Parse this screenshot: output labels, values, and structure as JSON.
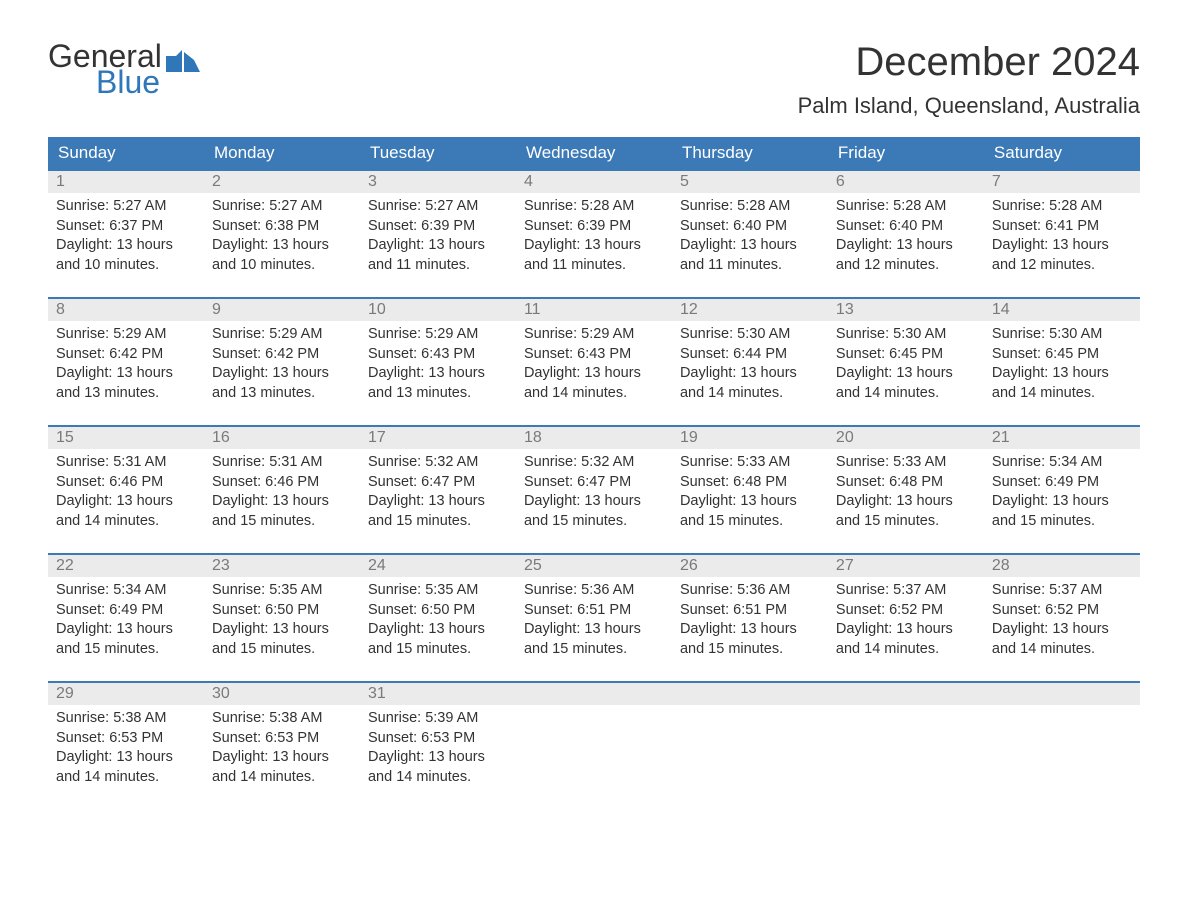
{
  "logo": {
    "word1": "General",
    "word2": "Blue",
    "accent_color": "#2f77b9"
  },
  "title": "December 2024",
  "location": "Palm Island, Queensland, Australia",
  "colors": {
    "header_bg": "#3b7ab7",
    "header_text": "#ffffff",
    "daynum_bg": "#ebebeb",
    "daynum_text": "#7a7a7a",
    "body_text": "#333333",
    "rule": "#3b7ab7",
    "background": "#ffffff"
  },
  "typography": {
    "title_fontsize": 40,
    "location_fontsize": 22,
    "dow_fontsize": 17,
    "daynum_fontsize": 16,
    "body_fontsize": 14.5
  },
  "days_of_week": [
    "Sunday",
    "Monday",
    "Tuesday",
    "Wednesday",
    "Thursday",
    "Friday",
    "Saturday"
  ],
  "weeks": [
    [
      {
        "n": "1",
        "sunrise": "5:27 AM",
        "sunset": "6:37 PM",
        "daylight": "13 hours and 10 minutes."
      },
      {
        "n": "2",
        "sunrise": "5:27 AM",
        "sunset": "6:38 PM",
        "daylight": "13 hours and 10 minutes."
      },
      {
        "n": "3",
        "sunrise": "5:27 AM",
        "sunset": "6:39 PM",
        "daylight": "13 hours and 11 minutes."
      },
      {
        "n": "4",
        "sunrise": "5:28 AM",
        "sunset": "6:39 PM",
        "daylight": "13 hours and 11 minutes."
      },
      {
        "n": "5",
        "sunrise": "5:28 AM",
        "sunset": "6:40 PM",
        "daylight": "13 hours and 11 minutes."
      },
      {
        "n": "6",
        "sunrise": "5:28 AM",
        "sunset": "6:40 PM",
        "daylight": "13 hours and 12 minutes."
      },
      {
        "n": "7",
        "sunrise": "5:28 AM",
        "sunset": "6:41 PM",
        "daylight": "13 hours and 12 minutes."
      }
    ],
    [
      {
        "n": "8",
        "sunrise": "5:29 AM",
        "sunset": "6:42 PM",
        "daylight": "13 hours and 13 minutes."
      },
      {
        "n": "9",
        "sunrise": "5:29 AM",
        "sunset": "6:42 PM",
        "daylight": "13 hours and 13 minutes."
      },
      {
        "n": "10",
        "sunrise": "5:29 AM",
        "sunset": "6:43 PM",
        "daylight": "13 hours and 13 minutes."
      },
      {
        "n": "11",
        "sunrise": "5:29 AM",
        "sunset": "6:43 PM",
        "daylight": "13 hours and 14 minutes."
      },
      {
        "n": "12",
        "sunrise": "5:30 AM",
        "sunset": "6:44 PM",
        "daylight": "13 hours and 14 minutes."
      },
      {
        "n": "13",
        "sunrise": "5:30 AM",
        "sunset": "6:45 PM",
        "daylight": "13 hours and 14 minutes."
      },
      {
        "n": "14",
        "sunrise": "5:30 AM",
        "sunset": "6:45 PM",
        "daylight": "13 hours and 14 minutes."
      }
    ],
    [
      {
        "n": "15",
        "sunrise": "5:31 AM",
        "sunset": "6:46 PM",
        "daylight": "13 hours and 14 minutes."
      },
      {
        "n": "16",
        "sunrise": "5:31 AM",
        "sunset": "6:46 PM",
        "daylight": "13 hours and 15 minutes."
      },
      {
        "n": "17",
        "sunrise": "5:32 AM",
        "sunset": "6:47 PM",
        "daylight": "13 hours and 15 minutes."
      },
      {
        "n": "18",
        "sunrise": "5:32 AM",
        "sunset": "6:47 PM",
        "daylight": "13 hours and 15 minutes."
      },
      {
        "n": "19",
        "sunrise": "5:33 AM",
        "sunset": "6:48 PM",
        "daylight": "13 hours and 15 minutes."
      },
      {
        "n": "20",
        "sunrise": "5:33 AM",
        "sunset": "6:48 PM",
        "daylight": "13 hours and 15 minutes."
      },
      {
        "n": "21",
        "sunrise": "5:34 AM",
        "sunset": "6:49 PM",
        "daylight": "13 hours and 15 minutes."
      }
    ],
    [
      {
        "n": "22",
        "sunrise": "5:34 AM",
        "sunset": "6:49 PM",
        "daylight": "13 hours and 15 minutes."
      },
      {
        "n": "23",
        "sunrise": "5:35 AM",
        "sunset": "6:50 PM",
        "daylight": "13 hours and 15 minutes."
      },
      {
        "n": "24",
        "sunrise": "5:35 AM",
        "sunset": "6:50 PM",
        "daylight": "13 hours and 15 minutes."
      },
      {
        "n": "25",
        "sunrise": "5:36 AM",
        "sunset": "6:51 PM",
        "daylight": "13 hours and 15 minutes."
      },
      {
        "n": "26",
        "sunrise": "5:36 AM",
        "sunset": "6:51 PM",
        "daylight": "13 hours and 15 minutes."
      },
      {
        "n": "27",
        "sunrise": "5:37 AM",
        "sunset": "6:52 PM",
        "daylight": "13 hours and 14 minutes."
      },
      {
        "n": "28",
        "sunrise": "5:37 AM",
        "sunset": "6:52 PM",
        "daylight": "13 hours and 14 minutes."
      }
    ],
    [
      {
        "n": "29",
        "sunrise": "5:38 AM",
        "sunset": "6:53 PM",
        "daylight": "13 hours and 14 minutes."
      },
      {
        "n": "30",
        "sunrise": "5:38 AM",
        "sunset": "6:53 PM",
        "daylight": "13 hours and 14 minutes."
      },
      {
        "n": "31",
        "sunrise": "5:39 AM",
        "sunset": "6:53 PM",
        "daylight": "13 hours and 14 minutes."
      },
      null,
      null,
      null,
      null
    ]
  ],
  "labels": {
    "sunrise": "Sunrise:",
    "sunset": "Sunset:",
    "daylight": "Daylight:"
  }
}
